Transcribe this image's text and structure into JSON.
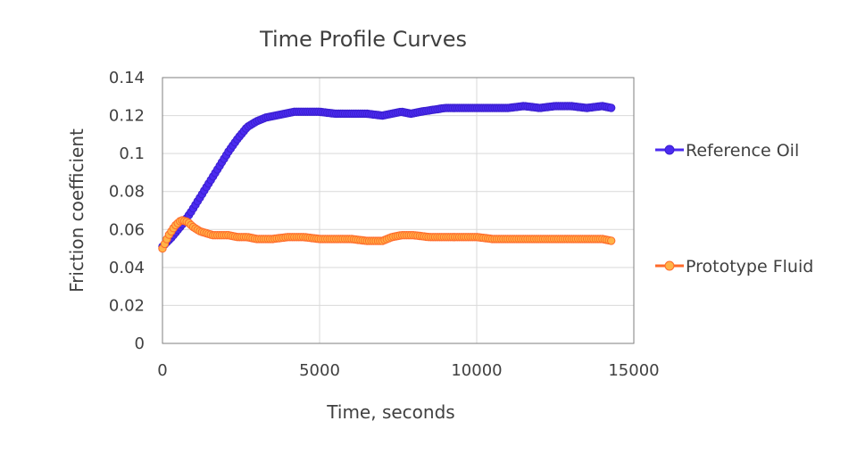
{
  "chart_data": {
    "type": "line",
    "title": "Time Profile Curves",
    "xlabel": "Time, seconds",
    "ylabel": "Friction coefficient",
    "xlim": [
      0,
      15000
    ],
    "ylim": [
      0,
      0.14
    ],
    "x_ticks": [
      "0",
      "5000",
      "10000",
      "15000"
    ],
    "y_ticks": [
      "0",
      "0.02",
      "0.04",
      "0.06",
      "0.08",
      "0.1",
      "0.12",
      "0.14"
    ],
    "grid": true,
    "legend_position": "right",
    "series": [
      {
        "name": "Reference Oil",
        "color": "#4b2bf0",
        "marker_edge": "#3a1fd0",
        "x": [
          0,
          300,
          600,
          900,
          1200,
          1500,
          1800,
          2100,
          2400,
          2700,
          3000,
          3300,
          3600,
          3900,
          4200,
          4500,
          5000,
          5500,
          6000,
          6500,
          7000,
          7300,
          7600,
          7900,
          8200,
          8600,
          9000,
          9500,
          10000,
          10500,
          11000,
          11500,
          12000,
          12500,
          13000,
          13500,
          14000,
          14300
        ],
        "y": [
          0.051,
          0.056,
          0.062,
          0.069,
          0.077,
          0.085,
          0.093,
          0.101,
          0.108,
          0.114,
          0.117,
          0.119,
          0.12,
          0.121,
          0.122,
          0.122,
          0.122,
          0.121,
          0.121,
          0.121,
          0.12,
          0.121,
          0.122,
          0.121,
          0.122,
          0.123,
          0.124,
          0.124,
          0.124,
          0.124,
          0.124,
          0.125,
          0.124,
          0.125,
          0.125,
          0.124,
          0.125,
          0.124
        ]
      },
      {
        "name": "Prototype Fluid",
        "color": "#ff6a2a",
        "marker_fill": "#ffb347",
        "x": [
          0,
          200,
          400,
          600,
          800,
          1000,
          1200,
          1400,
          1600,
          1800,
          2100,
          2400,
          2700,
          3000,
          3500,
          4000,
          4500,
          5000,
          5500,
          6000,
          6500,
          7000,
          7300,
          7600,
          8000,
          8500,
          9000,
          9500,
          10000,
          10500,
          11000,
          11500,
          12000,
          12500,
          13000,
          13500,
          14000,
          14300
        ],
        "y": [
          0.05,
          0.057,
          0.062,
          0.065,
          0.064,
          0.061,
          0.059,
          0.058,
          0.057,
          0.057,
          0.057,
          0.056,
          0.056,
          0.055,
          0.055,
          0.056,
          0.056,
          0.055,
          0.055,
          0.055,
          0.054,
          0.054,
          0.056,
          0.057,
          0.057,
          0.056,
          0.056,
          0.056,
          0.056,
          0.055,
          0.055,
          0.055,
          0.055,
          0.055,
          0.055,
          0.055,
          0.055,
          0.054
        ]
      }
    ]
  }
}
